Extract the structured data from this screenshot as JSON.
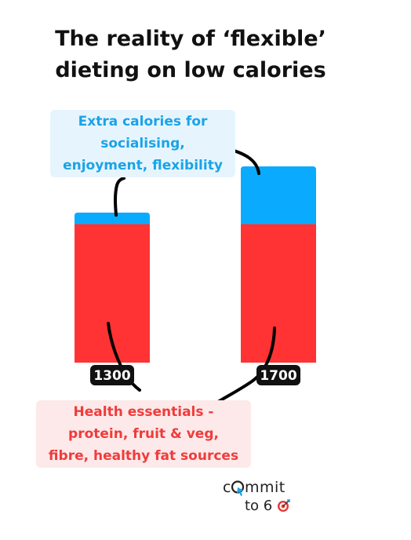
{
  "title": {
    "line1": "The reality of ‘flexible’",
    "line2": "dieting on low calories"
  },
  "colors": {
    "essentials": "#ff3333",
    "extra": "#0aabff",
    "label_bg": "#111111",
    "connector": "#000000"
  },
  "annotations": {
    "extra_calories": [
      "Extra calories for",
      "socialising,",
      "enjoyment, flexibility"
    ],
    "health_essentials": [
      "Health essentials -",
      "protein, fruit & veg,",
      "fibre, healthy fat sources"
    ]
  },
  "logo": {
    "line1_a": "c",
    "line1_b": "mmit",
    "line2": "to 6",
    "icon": "target-icon"
  },
  "chart_data": {
    "type": "bar",
    "stacked": true,
    "categories": [
      "1300",
      "1700"
    ],
    "series": [
      {
        "name": "Health essentials - protein, fruit & veg, fibre, healthy fat sources",
        "values": [
          1200,
          1200
        ]
      },
      {
        "name": "Extra calories for socialising, enjoyment, flexibility",
        "values": [
          100,
          500
        ]
      }
    ],
    "ylim": [
      0,
      1700
    ],
    "grid": false,
    "legend": "none"
  }
}
